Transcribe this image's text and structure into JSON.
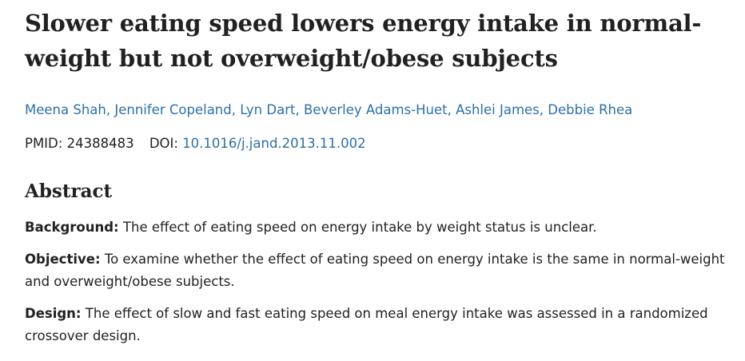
{
  "article": {
    "title": "Slower eating speed lowers energy intake in normal-weight but not overweight/obese subjects",
    "authors": [
      "Meena Shah",
      "Jennifer Copeland",
      "Lyn Dart",
      "Beverley Adams-Huet",
      "Ashlei James",
      "Debbie Rhea"
    ],
    "pmid_label": "PMID:",
    "pmid": "24388483",
    "doi_label": "DOI:",
    "doi": "10.1016/j.jand.2013.11.002"
  },
  "abstract": {
    "heading": "Abstract",
    "sections": [
      {
        "label": "Background:",
        "text": "The effect of eating speed on energy intake by weight status is unclear."
      },
      {
        "label": "Objective:",
        "text": "To examine whether the effect of eating speed on energy intake is the same in normal-weight and overweight/obese subjects."
      },
      {
        "label": "Design:",
        "text": "The effect of slow and fast eating speed on meal energy intake was assessed in a randomized crossover design."
      }
    ]
  },
  "colors": {
    "link": "#2c6fa8",
    "text": "#212121"
  }
}
